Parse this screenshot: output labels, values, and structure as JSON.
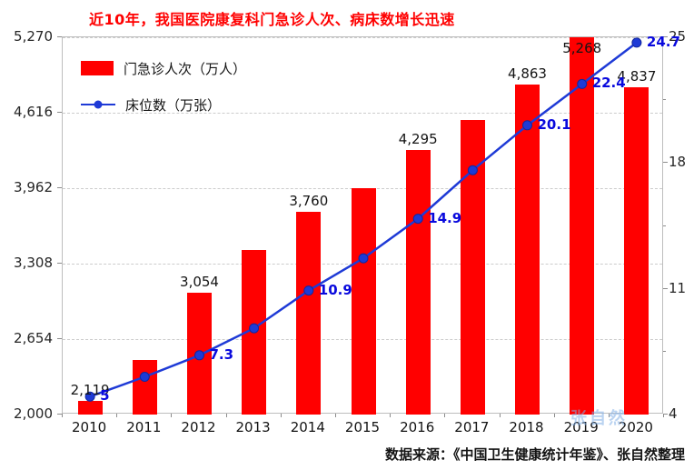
{
  "title": "近10年，我国医院康复科门急诊人次、病床数增长迅速",
  "legend": {
    "bars": "门急诊人次（万人）",
    "line": "床位数（万张）"
  },
  "footer": "数据来源：《中国卫生健康统计年鉴》、张自然整理",
  "watermark": "张自然",
  "colors": {
    "bar": "#ff0000",
    "line": "#1e3ad6",
    "line_marker_edge": "#12279e",
    "title": "#ff0000",
    "bar_label": "#141414",
    "line_label": "#0909dd",
    "grid": "#cccccc",
    "axis_text": "#262626"
  },
  "chart_data": {
    "type": "bar+line",
    "title": "近10年，我国医院康复科门急诊人次、病床数增长迅速",
    "categories": [
      "2010",
      "2011",
      "2012",
      "2013",
      "2014",
      "2015",
      "2016",
      "2017",
      "2018",
      "2019",
      "2020"
    ],
    "series": [
      {
        "name": "门急诊人次（万人）",
        "type": "bar",
        "axis": "left",
        "values": [
          2119,
          2470,
          3054,
          3430,
          3760,
          3962,
          4295,
          4550,
          4863,
          5268,
          4837
        ],
        "labels": [
          "2,119",
          null,
          "3,054",
          null,
          "3,760",
          null,
          "4,295",
          null,
          "4,863",
          "5,268",
          "4,837"
        ]
      },
      {
        "name": "床位数（万张）",
        "type": "line",
        "axis": "right",
        "values": [
          5,
          6.1,
          7.3,
          8.8,
          10.9,
          12.7,
          14.9,
          17.6,
          20.1,
          22.4,
          24.7
        ],
        "labels": [
          "5",
          null,
          "7.3",
          null,
          "10.9",
          null,
          "14.9",
          null,
          "20.1",
          "22.4",
          "24.7"
        ]
      }
    ],
    "left_axis": {
      "min": 2000,
      "max": 5270,
      "ticks": [
        2000,
        2654,
        3308,
        3962,
        4616,
        5270
      ],
      "tick_labels": [
        "2,000",
        "2,654",
        "3,308",
        "3,962",
        "4,616",
        "5,270"
      ]
    },
    "right_axis": {
      "min": 4,
      "max": 25,
      "ticks": [
        4,
        11,
        18,
        25
      ],
      "tick_labels": [
        "4",
        "11",
        "18",
        "25"
      ],
      "minor_ticks": [
        7.5,
        14.5,
        21.5
      ]
    },
    "grid": true,
    "legend_position": "top-left-inside"
  }
}
